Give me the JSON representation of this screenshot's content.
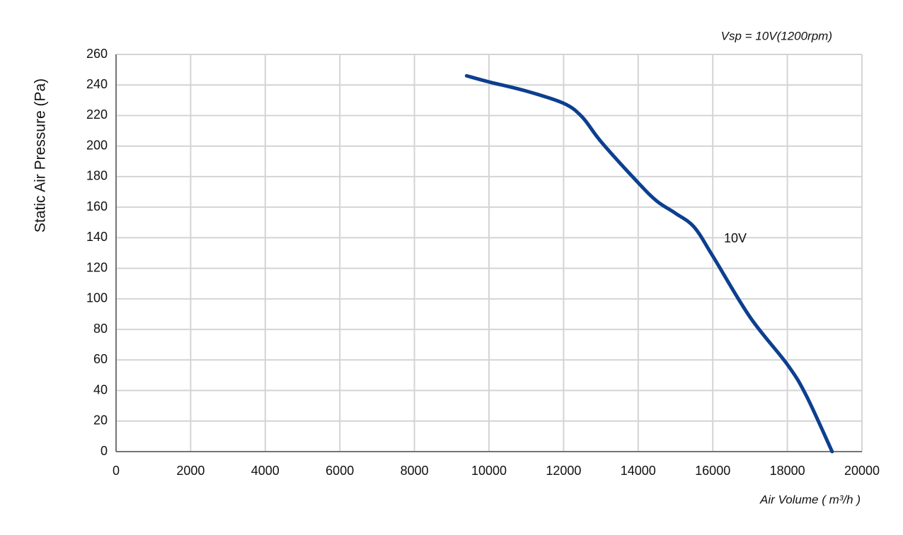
{
  "chart_data": {
    "type": "line",
    "subtitle": "Vsp = 10V(1200rpm)",
    "x_label": "Air Volume ( m³/h )",
    "y_label": "Static Air Pressure  (Pa)",
    "x": [
      9400,
      10000,
      11000,
      12000,
      12500,
      13000,
      14000,
      14500,
      15000,
      15500,
      16000,
      17000,
      18000,
      18500,
      19200
    ],
    "series": [
      {
        "name": "10V",
        "color": "#0d3f8f",
        "values": [
          246,
          242,
          236,
          228,
          219,
          203,
          176,
          164,
          156,
          147,
          128,
          88,
          57,
          37,
          0
        ]
      }
    ],
    "xlim": [
      0,
      20000
    ],
    "xticks": [
      0,
      2000,
      4000,
      6000,
      8000,
      10000,
      12000,
      14000,
      16000,
      18000,
      20000
    ],
    "ylim": [
      0,
      260
    ],
    "yticks": [
      0,
      20,
      40,
      60,
      80,
      100,
      120,
      140,
      160,
      180,
      200,
      220,
      240,
      260
    ],
    "grid": true
  }
}
